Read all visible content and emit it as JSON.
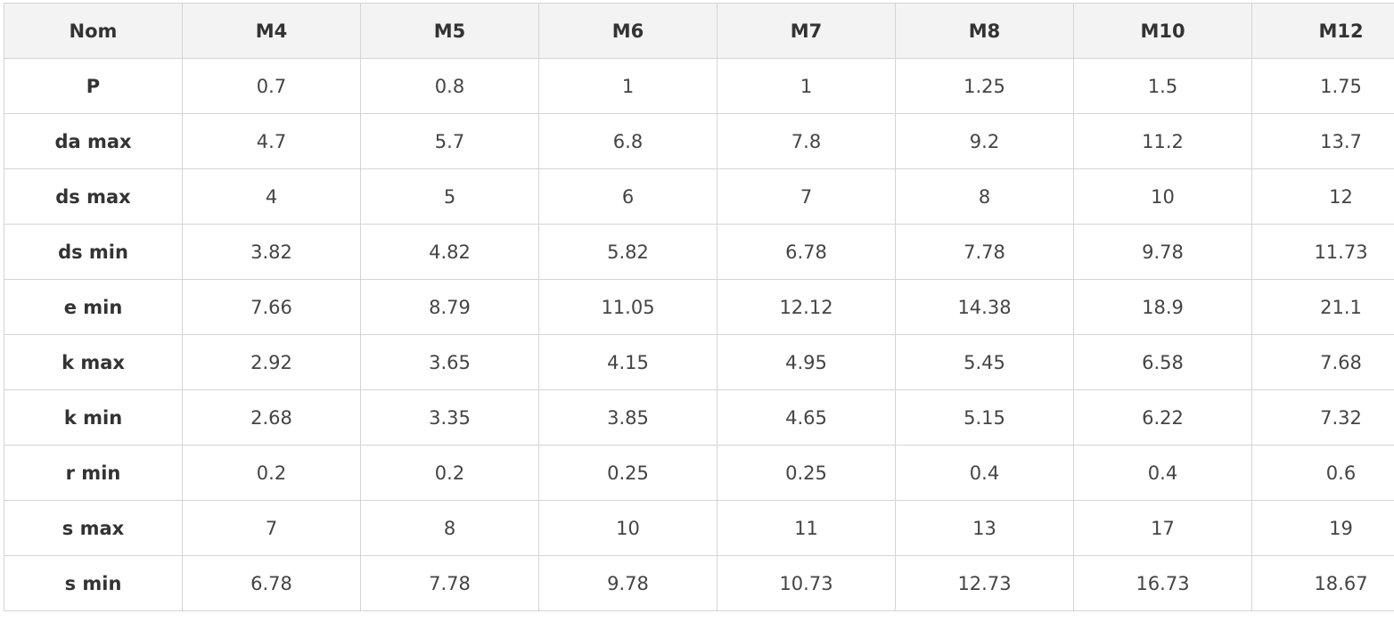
{
  "table": {
    "columns": [
      "Nom",
      "M4",
      "M5",
      "M6",
      "M7",
      "M8",
      "M10",
      "M12"
    ],
    "rows": [
      {
        "label": "P",
        "values": [
          "0.7",
          "0.8",
          "1",
          "1",
          "1.25",
          "1.5",
          "1.75"
        ]
      },
      {
        "label": "da max",
        "values": [
          "4.7",
          "5.7",
          "6.8",
          "7.8",
          "9.2",
          "11.2",
          "13.7"
        ]
      },
      {
        "label": "ds max",
        "values": [
          "4",
          "5",
          "6",
          "7",
          "8",
          "10",
          "12"
        ]
      },
      {
        "label": "ds min",
        "values": [
          "3.82",
          "4.82",
          "5.82",
          "6.78",
          "7.78",
          "9.78",
          "11.73"
        ]
      },
      {
        "label": "e min",
        "values": [
          "7.66",
          "8.79",
          "11.05",
          "12.12",
          "14.38",
          "18.9",
          "21.1"
        ]
      },
      {
        "label": "k max",
        "values": [
          "2.92",
          "3.65",
          "4.15",
          "4.95",
          "5.45",
          "6.58",
          "7.68"
        ]
      },
      {
        "label": "k min",
        "values": [
          "2.68",
          "3.35",
          "3.85",
          "4.65",
          "5.15",
          "6.22",
          "7.32"
        ]
      },
      {
        "label": "r min",
        "values": [
          "0.2",
          "0.2",
          "0.25",
          "0.25",
          "0.4",
          "0.4",
          "0.6"
        ]
      },
      {
        "label": "s max",
        "values": [
          "7",
          "8",
          "10",
          "11",
          "13",
          "17",
          "19"
        ]
      },
      {
        "label": "s min",
        "values": [
          "6.78",
          "7.78",
          "9.78",
          "10.73",
          "12.73",
          "16.73",
          "18.67"
        ]
      }
    ]
  },
  "colors": {
    "header_bg": "#f3f3f3",
    "border": "#d4d4d4",
    "text": "#333333"
  }
}
